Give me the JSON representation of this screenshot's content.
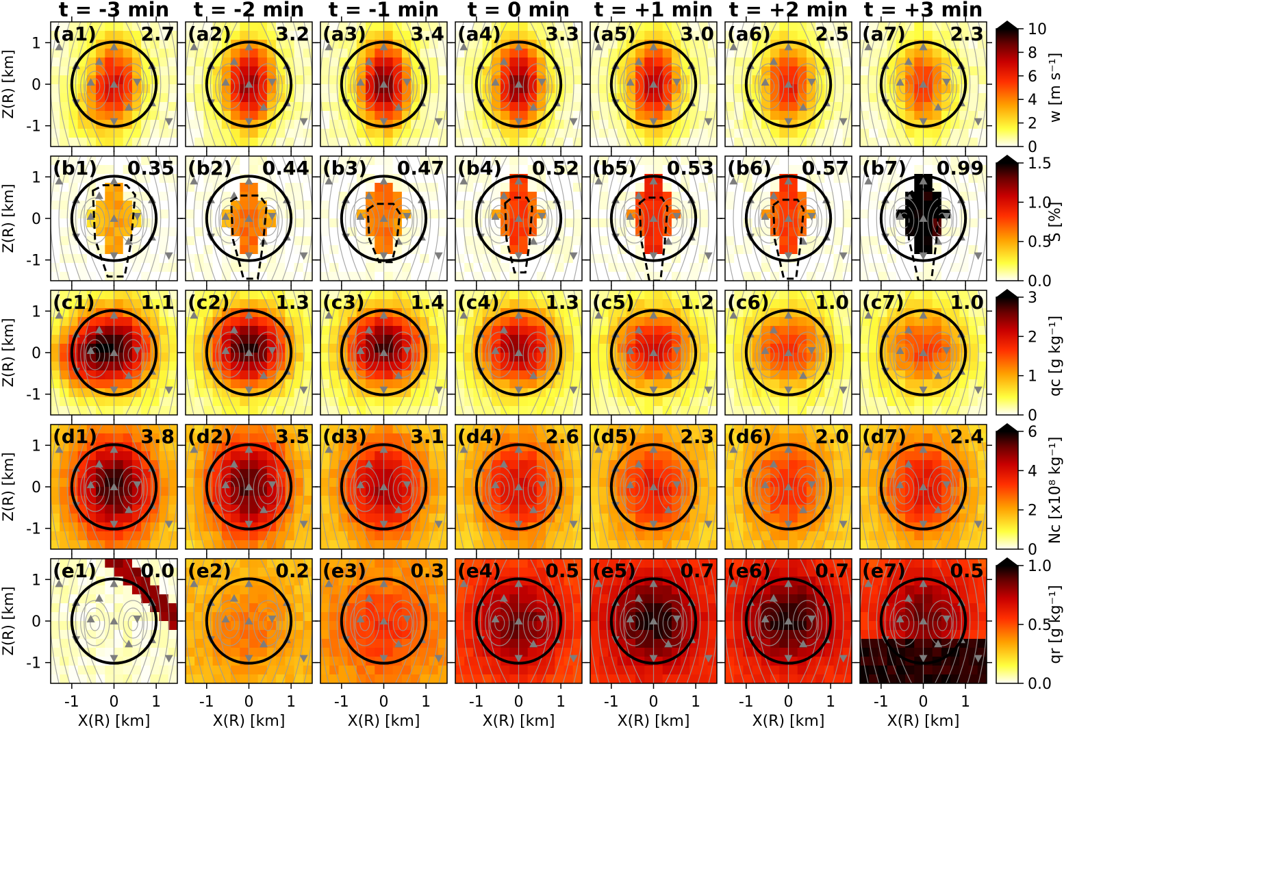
{
  "columns": [
    "t = -3 min",
    "t = -2 min",
    "t = -1 min",
    "t = 0 min",
    "t = +1 min",
    "t = +2 min",
    "t = +3 min"
  ],
  "xlabel": "X(R) [km]",
  "ylabel": "Z(R) [km]",
  "x_ticks": [
    "-1",
    "0",
    "1"
  ],
  "y_ticks": [
    "1",
    "0",
    "-1"
  ],
  "rows": [
    {
      "key": "a",
      "colorbar_label": "w [m s⁻¹]",
      "cbar_ticks": [
        "10",
        "8",
        "6",
        "4",
        "2",
        "0"
      ],
      "panel_labels": [
        "(a1)",
        "(a2)",
        "(a3)",
        "(a4)",
        "(a5)",
        "(a6)",
        "(a7)"
      ],
      "max_values": [
        "2.7",
        "3.2",
        "3.4",
        "3.3",
        "3.0",
        "2.5",
        "2.3"
      ]
    },
    {
      "key": "b",
      "colorbar_label": "S [%]",
      "cbar_ticks": [
        "1.5",
        "1.0",
        "0.5",
        "0.0"
      ],
      "panel_labels": [
        "(b1)",
        "(b2)",
        "(b3)",
        "(b4)",
        "(b5)",
        "(b6)",
        "(b7)"
      ],
      "max_values": [
        "0.35",
        "0.44",
        "0.47",
        "0.52",
        "0.53",
        "0.57",
        "0.99"
      ]
    },
    {
      "key": "c",
      "colorbar_label": "qc [g kg⁻¹]",
      "cbar_ticks": [
        "3",
        "2",
        "1",
        "0"
      ],
      "panel_labels": [
        "(c1)",
        "(c2)",
        "(c3)",
        "(c4)",
        "(c5)",
        "(c6)",
        "(c7)"
      ],
      "max_values": [
        "1.1",
        "1.3",
        "1.4",
        "1.3",
        "1.2",
        "1.0",
        "1.0"
      ]
    },
    {
      "key": "d",
      "colorbar_label": "Nc [x10⁸ kg⁻¹]",
      "cbar_ticks": [
        "6",
        "4",
        "2",
        "0"
      ],
      "panel_labels": [
        "(d1)",
        "(d2)",
        "(d3)",
        "(d4)",
        "(d5)",
        "(d6)",
        "(d7)"
      ],
      "max_values": [
        "3.8",
        "3.5",
        "3.1",
        "2.6",
        "2.3",
        "2.0",
        "2.4"
      ]
    },
    {
      "key": "e",
      "colorbar_label": "qr [g kg⁻¹]",
      "cbar_ticks": [
        "1.0",
        "0.5",
        "0.0"
      ],
      "panel_labels": [
        "(e1)",
        "(e2)",
        "(e3)",
        "(e4)",
        "(e5)",
        "(e6)",
        "(e7)"
      ],
      "max_values": [
        "0.0",
        "0.2",
        "0.3",
        "0.5",
        "0.7",
        "0.7",
        "0.5"
      ]
    }
  ],
  "chart_data": {
    "type": "heatmap",
    "colormap": [
      "#fffff6",
      "#ffff40",
      "#ffa000",
      "#ff3000",
      "#c80000",
      "#6a0000",
      "#000000"
    ],
    "x_range": [
      -1.5,
      1.5
    ],
    "y_range": [
      -1.5,
      1.5
    ],
    "ring_radius_km": 1.0,
    "panels": [
      {
        "row": "a",
        "cbar_max": 10,
        "values": [
          2.7,
          3.2,
          3.4,
          3.3,
          3.0,
          2.5,
          2.3
        ]
      },
      {
        "row": "b",
        "cbar_max": 1.5,
        "values": [
          0.35,
          0.44,
          0.47,
          0.52,
          0.53,
          0.57,
          0.99
        ]
      },
      {
        "row": "c",
        "cbar_max": 3,
        "values": [
          1.1,
          1.3,
          1.4,
          1.3,
          1.2,
          1.0,
          1.0
        ]
      },
      {
        "row": "d",
        "cbar_max": 6,
        "values": [
          3.8,
          3.5,
          3.1,
          2.6,
          2.3,
          2.0,
          2.4
        ]
      },
      {
        "row": "e",
        "cbar_max": 1.0,
        "values": [
          0.0,
          0.2,
          0.3,
          0.5,
          0.7,
          0.7,
          0.5
        ]
      }
    ]
  }
}
